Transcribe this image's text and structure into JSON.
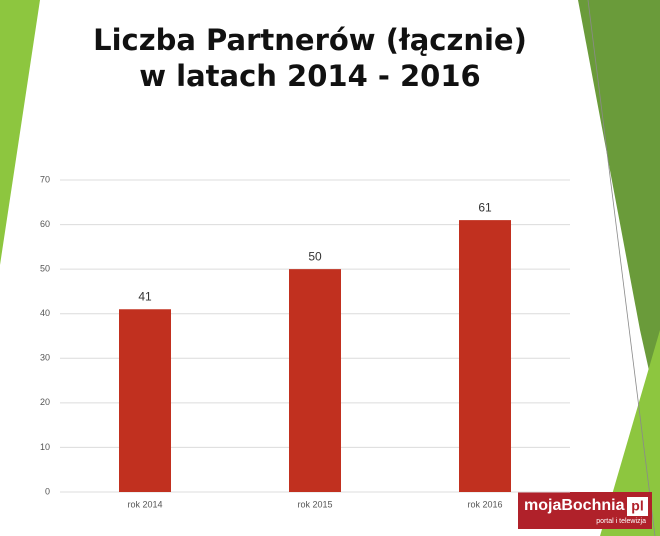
{
  "chart_data": {
    "type": "bar",
    "title_lines": [
      "Liczba Partnerów (łącznie)",
      "w latach 2014 - 2016"
    ],
    "categories": [
      "rok 2014",
      "rok 2015",
      "rok 2016"
    ],
    "values": [
      41,
      50,
      61
    ],
    "color": "#c1301f",
    "ylim": [
      0,
      70
    ],
    "yticks": [
      0,
      10,
      20,
      30,
      40,
      50,
      60,
      70
    ],
    "grid": true
  },
  "logo": {
    "name": "mojaBochnia",
    "domain": "pl",
    "tagline": "portal i telewizja"
  }
}
